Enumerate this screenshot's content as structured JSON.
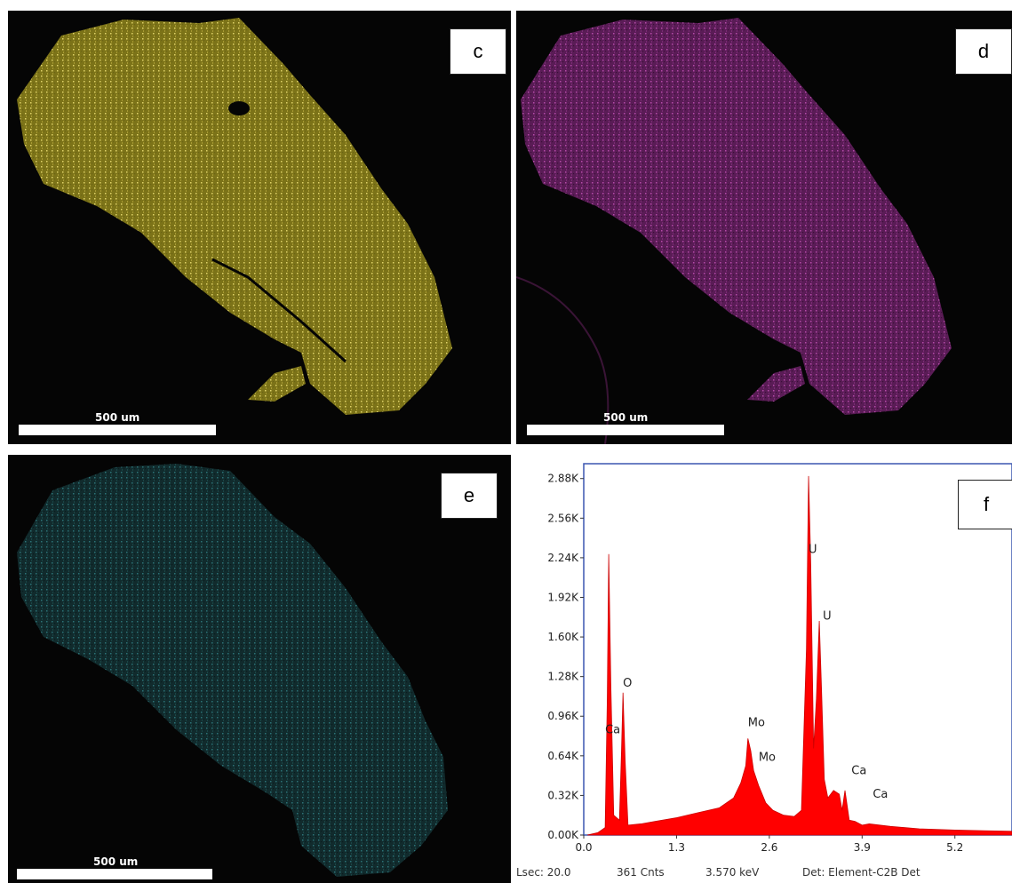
{
  "panels": {
    "c": {
      "label": "c",
      "scale": "500 um",
      "color": "#b3a72c"
    },
    "d": {
      "label": "d",
      "scale": "500 um",
      "color": "#8a2c84"
    },
    "e": {
      "label": "e",
      "scale": "500 um",
      "color": "#1e5a5e"
    },
    "f": {
      "label": "f"
    }
  },
  "spectrum": {
    "footer": {
      "lsec": "Lsec: 20.0",
      "cnts": "361 Cnts",
      "kev": "3.570 keV",
      "det": "Det: Element-C2B Det"
    }
  },
  "chart_data": {
    "type": "area",
    "xlabel": "",
    "ylabel": "",
    "xlim": [
      0.0,
      6.0
    ],
    "ylim": [
      0,
      3000
    ],
    "x_ticks": [
      "0.0",
      "1.3",
      "2.6",
      "3.9",
      "5.2"
    ],
    "x_tick_values": [
      0.0,
      1.3,
      2.6,
      3.9,
      5.2
    ],
    "y_ticks": [
      "0.00K",
      "0.32K",
      "0.64K",
      "0.96K",
      "1.28K",
      "1.60K",
      "1.92K",
      "2.24K",
      "2.56K",
      "2.88K"
    ],
    "y_tick_values": [
      0,
      320,
      640,
      960,
      1280,
      1600,
      1920,
      2240,
      2560,
      2880
    ],
    "series": [
      {
        "color": "#ff0000",
        "x": [
          0.05,
          0.2,
          0.3,
          0.33,
          0.35,
          0.38,
          0.42,
          0.5,
          0.53,
          0.55,
          0.58,
          0.62,
          0.8,
          1.0,
          1.3,
          1.6,
          1.9,
          2.1,
          2.2,
          2.27,
          2.3,
          2.34,
          2.38,
          2.45,
          2.55,
          2.65,
          2.8,
          2.95,
          3.05,
          3.12,
          3.15,
          3.18,
          3.22,
          3.26,
          3.3,
          3.33,
          3.37,
          3.42,
          3.5,
          3.58,
          3.62,
          3.66,
          3.72,
          3.8,
          3.9,
          4.0,
          4.3,
          4.7,
          5.2,
          5.6,
          6.0
        ],
        "y": [
          0,
          20,
          60,
          1100,
          2270,
          1200,
          160,
          120,
          700,
          1150,
          600,
          80,
          90,
          110,
          140,
          180,
          220,
          300,
          420,
          560,
          780,
          680,
          520,
          400,
          260,
          200,
          160,
          150,
          200,
          1500,
          2900,
          2200,
          700,
          1100,
          1730,
          1200,
          450,
          300,
          360,
          330,
          200,
          360,
          120,
          110,
          80,
          90,
          70,
          50,
          40,
          35,
          30
        ]
      }
    ],
    "annotations": [
      {
        "text": "Ca",
        "x": 0.3,
        "y": 820
      },
      {
        "text": "O",
        "x": 0.55,
        "y": 1200
      },
      {
        "text": "Mo",
        "x": 2.3,
        "y": 880
      },
      {
        "text": "Mo",
        "x": 2.45,
        "y": 600
      },
      {
        "text": "U",
        "x": 3.15,
        "y": 2280
      },
      {
        "text": "U",
        "x": 3.35,
        "y": 1740
      },
      {
        "text": "Ca",
        "x": 3.75,
        "y": 490
      },
      {
        "text": "Ca",
        "x": 4.05,
        "y": 300
      }
    ]
  }
}
